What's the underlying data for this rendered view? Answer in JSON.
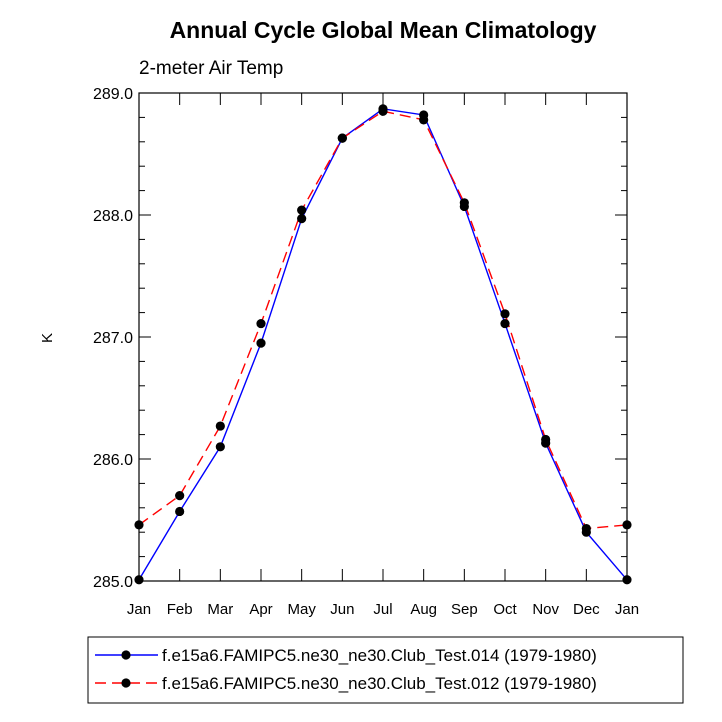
{
  "chart_data": {
    "type": "line",
    "title": "Annual Cycle Global Mean Climatology",
    "subtitle": "2-meter Air Temp",
    "xlabel": "",
    "ylabel": "K",
    "categories": [
      "Jan",
      "Feb",
      "Mar",
      "Apr",
      "May",
      "Jun",
      "Jul",
      "Aug",
      "Sep",
      "Oct",
      "Nov",
      "Dec",
      "Jan"
    ],
    "ylim": [
      285.0,
      289.0
    ],
    "yticks": [
      "285.0",
      "286.0",
      "287.0",
      "288.0",
      "289.0"
    ],
    "ytick_values": [
      285.0,
      286.0,
      287.0,
      288.0,
      289.0
    ],
    "grid": false,
    "legend_position": "bottom",
    "series": [
      {
        "name": "f.e15a6.FAMIPC5.ne30_ne30.Club_Test.014 (1979-1980)",
        "color": "#0000ff",
        "dash": "solid",
        "values": [
          285.01,
          285.57,
          286.1,
          286.95,
          287.97,
          288.63,
          288.87,
          288.82,
          288.07,
          287.11,
          286.13,
          285.4,
          285.01
        ]
      },
      {
        "name": "f.e15a6.FAMIPC5.ne30_ne30.Club_Test.012 (1979-1980)",
        "color": "#ff0000",
        "dash": "dashed",
        "values": [
          285.46,
          285.7,
          286.27,
          287.11,
          288.04,
          288.63,
          288.85,
          288.78,
          288.1,
          287.19,
          286.16,
          285.43,
          285.46
        ]
      }
    ]
  }
}
